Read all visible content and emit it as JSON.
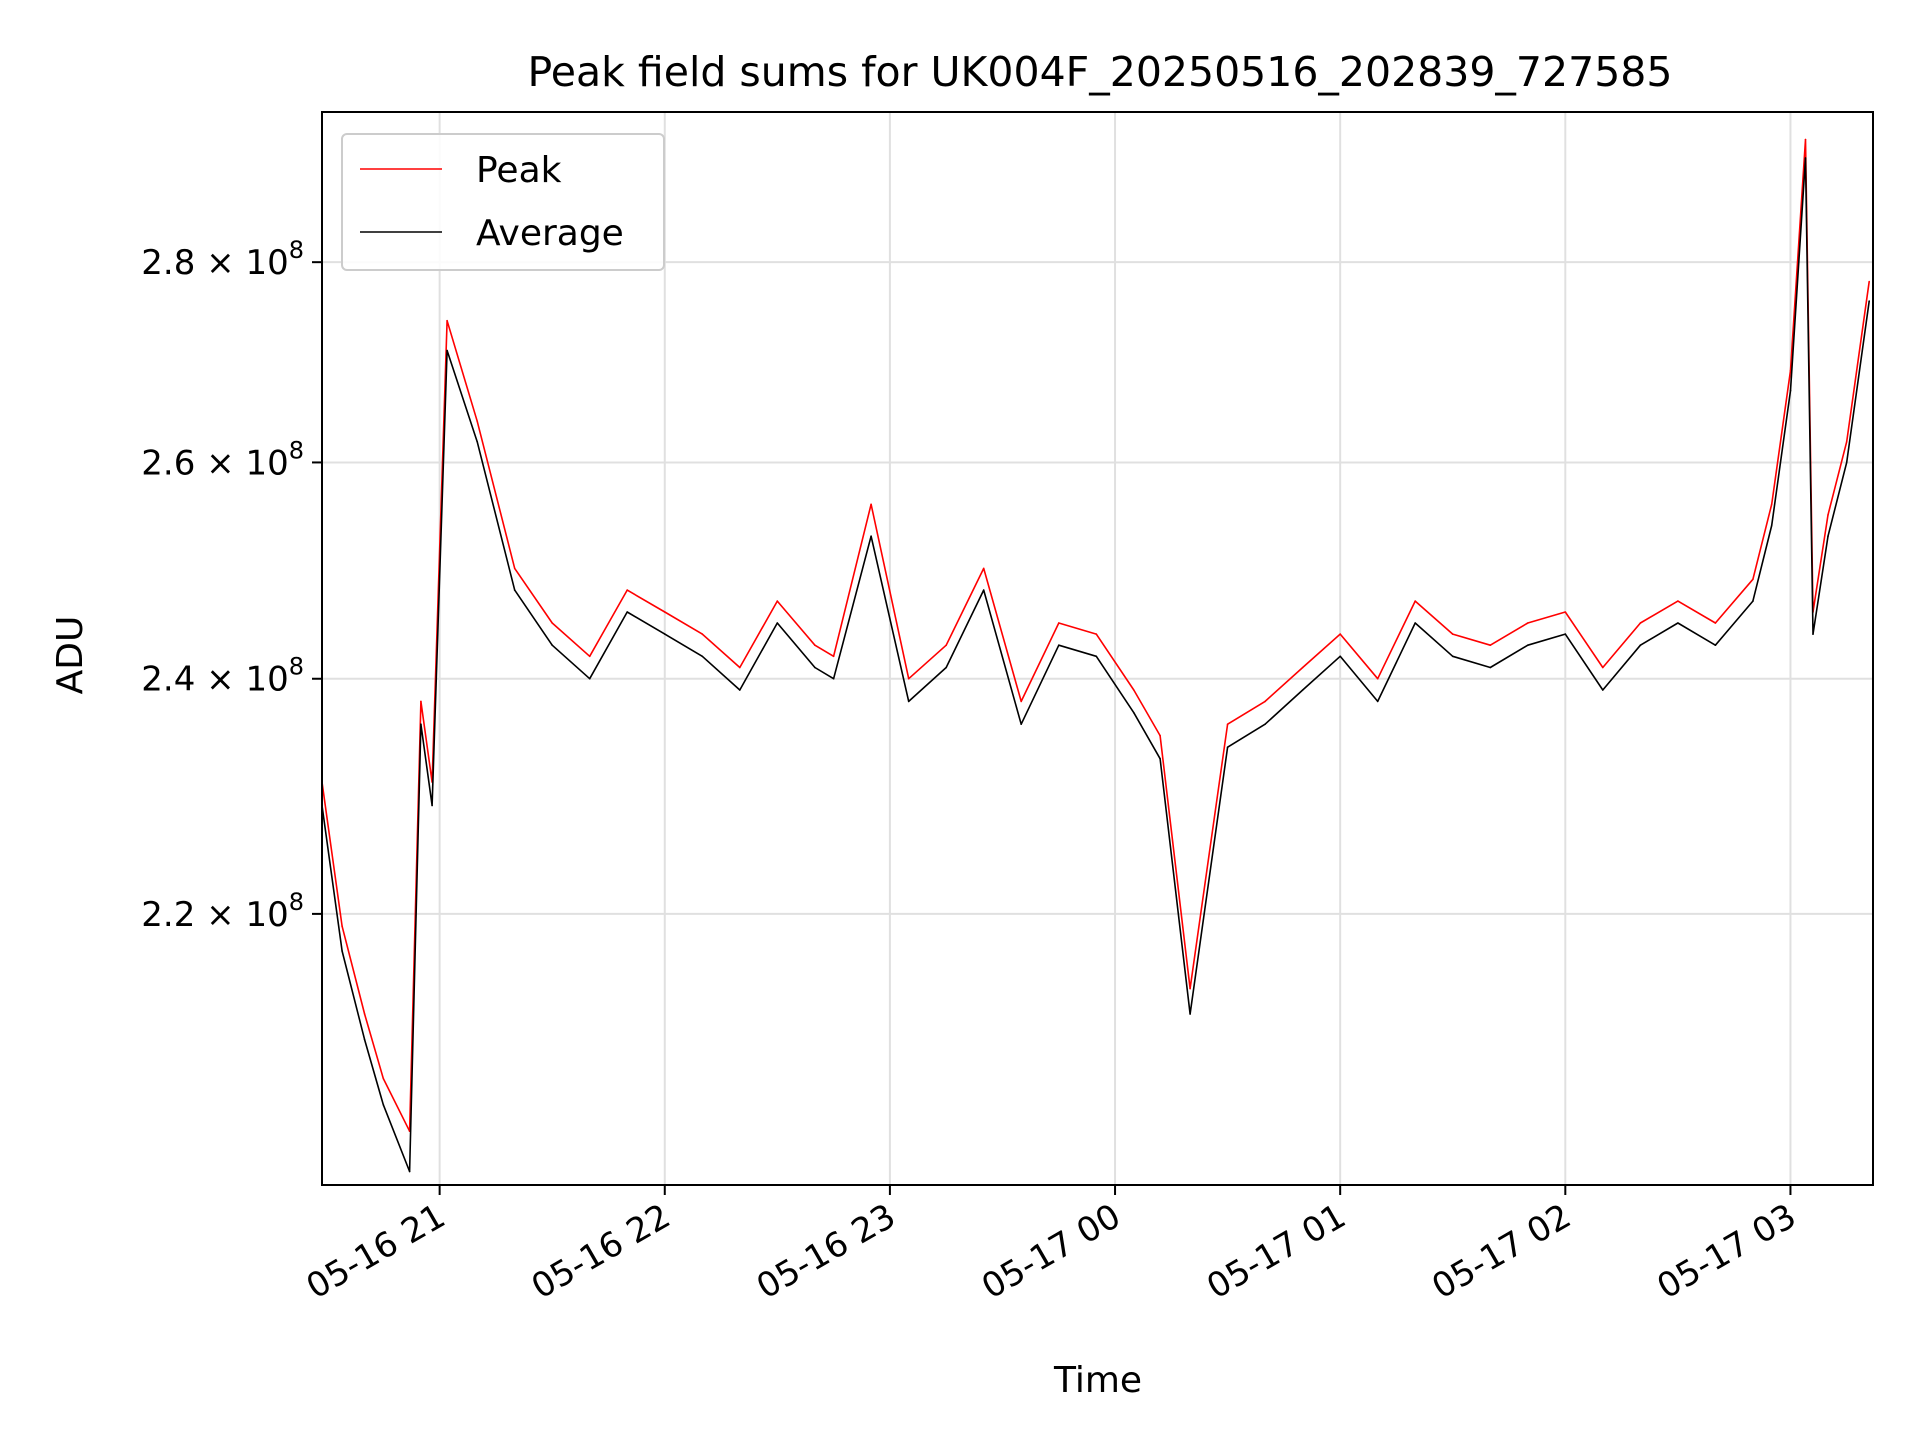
{
  "chart_data": {
    "type": "line",
    "title": "Peak field sums for UK004F_20250516_202839_727585",
    "xlabel": "Time",
    "ylabel": "ADU",
    "y_scale": "log",
    "xlim": [
      "2025-05-16 20:28:39",
      "2025-05-17 03:22:00"
    ],
    "ylim": [
      199000000.0,
      296000000.0
    ],
    "grid": true,
    "legend_position": "upper left",
    "x_ticks": [
      "05-16 21",
      "05-16 22",
      "05-16 23",
      "05-17 00",
      "05-17 01",
      "05-17 02",
      "05-17 03"
    ],
    "y_ticks": [
      {
        "value": 220000000.0,
        "mantissa": "2.2",
        "base": "10",
        "exponent": "8"
      },
      {
        "value": 240000000.0,
        "mantissa": "2.4",
        "base": "10",
        "exponent": "8"
      },
      {
        "value": 260000000.0,
        "mantissa": "2.6",
        "base": "10",
        "exponent": "8"
      },
      {
        "value": 280000000.0,
        "mantissa": "2.8",
        "base": "10",
        "exponent": "8"
      }
    ],
    "series": [
      {
        "name": "Peak",
        "color": "#ff0000",
        "x": [
          "2025-05-16 20:28",
          "2025-05-16 20:34",
          "2025-05-16 20:40",
          "2025-05-16 20:45",
          "2025-05-16 20:52",
          "2025-05-16 20:55",
          "2025-05-16 20:58",
          "2025-05-16 21:02",
          "2025-05-16 21:10",
          "2025-05-16 21:20",
          "2025-05-16 21:30",
          "2025-05-16 21:40",
          "2025-05-16 21:50",
          "2025-05-16 22:00",
          "2025-05-16 22:10",
          "2025-05-16 22:20",
          "2025-05-16 22:30",
          "2025-05-16 22:40",
          "2025-05-16 22:45",
          "2025-05-16 22:55",
          "2025-05-16 23:05",
          "2025-05-16 23:15",
          "2025-05-16 23:25",
          "2025-05-16 23:35",
          "2025-05-16 23:45",
          "2025-05-16 23:55",
          "2025-05-17 00:05",
          "2025-05-17 00:12",
          "2025-05-17 00:20",
          "2025-05-17 00:30",
          "2025-05-17 00:40",
          "2025-05-17 00:50",
          "2025-05-17 01:00",
          "2025-05-17 01:10",
          "2025-05-17 01:20",
          "2025-05-17 01:30",
          "2025-05-17 01:40",
          "2025-05-17 01:50",
          "2025-05-17 02:00",
          "2025-05-17 02:10",
          "2025-05-17 02:20",
          "2025-05-17 02:30",
          "2025-05-17 02:40",
          "2025-05-17 02:50",
          "2025-05-17 02:55",
          "2025-05-17 03:00",
          "2025-05-17 03:04",
          "2025-05-17 03:06",
          "2025-05-17 03:10",
          "2025-05-17 03:15",
          "2025-05-17 03:21"
        ],
        "y": [
          231000000.0,
          219000000.0,
          212000000.0,
          207000000.0,
          203000000.0,
          238000000.0,
          231000000.0,
          274000000.0,
          264000000.0,
          250000000.0,
          245000000.0,
          242000000.0,
          248000000.0,
          246000000.0,
          244000000.0,
          241000000.0,
          247000000.0,
          243000000.0,
          242000000.0,
          256000000.0,
          240000000.0,
          243000000.0,
          250000000.0,
          238000000.0,
          245000000.0,
          244000000.0,
          239000000.0,
          235000000.0,
          214000000.0,
          236000000.0,
          238000000.0,
          241000000.0,
          244000000.0,
          240000000.0,
          247000000.0,
          244000000.0,
          243000000.0,
          245000000.0,
          246000000.0,
          241000000.0,
          245000000.0,
          247000000.0,
          245000000.0,
          249000000.0,
          256000000.0,
          269000000.0,
          293000000.0,
          246000000.0,
          255000000.0,
          262000000.0,
          278000000.0
        ]
      },
      {
        "name": "Average",
        "color": "#000000",
        "x": [
          "2025-05-16 20:28",
          "2025-05-16 20:34",
          "2025-05-16 20:40",
          "2025-05-16 20:45",
          "2025-05-16 20:52",
          "2025-05-16 20:55",
          "2025-05-16 20:58",
          "2025-05-16 21:02",
          "2025-05-16 21:10",
          "2025-05-16 21:20",
          "2025-05-16 21:30",
          "2025-05-16 21:40",
          "2025-05-16 21:50",
          "2025-05-16 22:00",
          "2025-05-16 22:10",
          "2025-05-16 22:20",
          "2025-05-16 22:30",
          "2025-05-16 22:40",
          "2025-05-16 22:45",
          "2025-05-16 22:55",
          "2025-05-16 23:05",
          "2025-05-16 23:15",
          "2025-05-16 23:25",
          "2025-05-16 23:35",
          "2025-05-16 23:45",
          "2025-05-16 23:55",
          "2025-05-17 00:05",
          "2025-05-17 00:12",
          "2025-05-17 00:20",
          "2025-05-17 00:30",
          "2025-05-17 00:40",
          "2025-05-17 00:50",
          "2025-05-17 01:00",
          "2025-05-17 01:10",
          "2025-05-17 01:20",
          "2025-05-17 01:30",
          "2025-05-17 01:40",
          "2025-05-17 01:50",
          "2025-05-17 02:00",
          "2025-05-17 02:10",
          "2025-05-17 02:20",
          "2025-05-17 02:30",
          "2025-05-17 02:40",
          "2025-05-17 02:50",
          "2025-05-17 02:55",
          "2025-05-17 03:00",
          "2025-05-17 03:04",
          "2025-05-17 03:06",
          "2025-05-17 03:10",
          "2025-05-17 03:15",
          "2025-05-17 03:21"
        ],
        "y": [
          229000000.0,
          217000000.0,
          210000000.0,
          205000000.0,
          200000000.0,
          236000000.0,
          229000000.0,
          271000000.0,
          262000000.0,
          248000000.0,
          243000000.0,
          240000000.0,
          246000000.0,
          244000000.0,
          242000000.0,
          239000000.0,
          245000000.0,
          241000000.0,
          240000000.0,
          253000000.0,
          238000000.0,
          241000000.0,
          248000000.0,
          236000000.0,
          243000000.0,
          242000000.0,
          237000000.0,
          233000000.0,
          212000000.0,
          234000000.0,
          236000000.0,
          239000000.0,
          242000000.0,
          238000000.0,
          245000000.0,
          242000000.0,
          241000000.0,
          243000000.0,
          244000000.0,
          239000000.0,
          243000000.0,
          245000000.0,
          243000000.0,
          247000000.0,
          254000000.0,
          267000000.0,
          291000000.0,
          244000000.0,
          253000000.0,
          260000000.0,
          276000000.0
        ]
      }
    ]
  }
}
